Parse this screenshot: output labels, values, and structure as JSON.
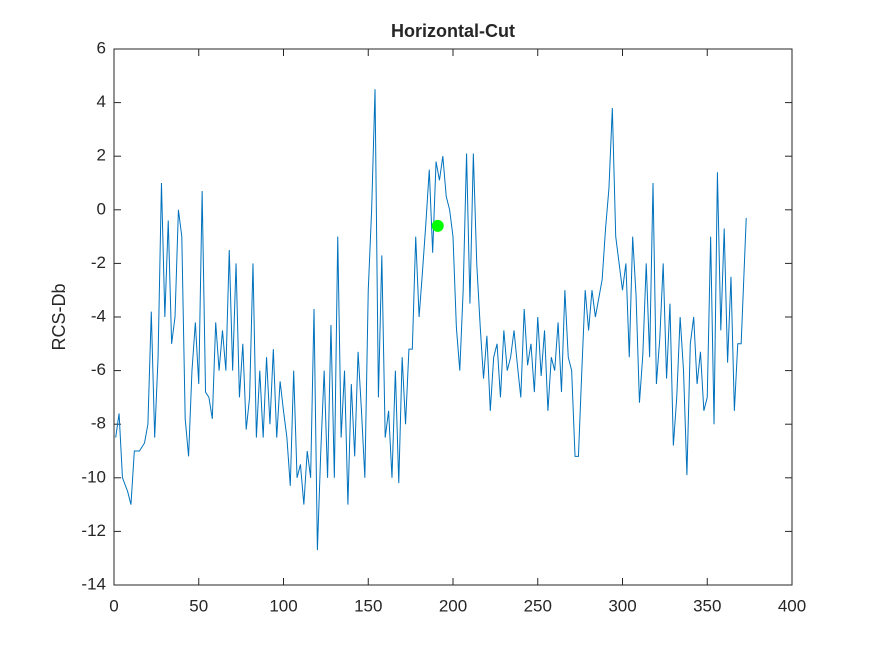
{
  "chart_data": {
    "type": "line",
    "title": "Horizontal-Cut",
    "y_label": "RCS-Db",
    "x": [
      1,
      3,
      5,
      8,
      10,
      12,
      15,
      18,
      20,
      22,
      24,
      26,
      28,
      30,
      32,
      34,
      36,
      38,
      40,
      42,
      44,
      46,
      48,
      50,
      52,
      54,
      56,
      58,
      60,
      62,
      64,
      66,
      68,
      70,
      72,
      74,
      76,
      78,
      80,
      82,
      84,
      86,
      88,
      90,
      92,
      94,
      96,
      98,
      100,
      102,
      104,
      106,
      108,
      110,
      112,
      114,
      116,
      118,
      120,
      122,
      124,
      126,
      128,
      130,
      132,
      134,
      136,
      138,
      140,
      142,
      144,
      146,
      148,
      150,
      152,
      154,
      156,
      158,
      160,
      162,
      164,
      166,
      168,
      170,
      172,
      174,
      176,
      178,
      180,
      182,
      184,
      186,
      188,
      190,
      192,
      194,
      196,
      198,
      200,
      202,
      204,
      206,
      208,
      210,
      212,
      214,
      216,
      218,
      220,
      222,
      224,
      226,
      228,
      230,
      232,
      234,
      236,
      238,
      240,
      242,
      244,
      246,
      248,
      250,
      252,
      254,
      256,
      258,
      260,
      262,
      264,
      266,
      268,
      270,
      272,
      274,
      276,
      278,
      280,
      282,
      284,
      286,
      288,
      290,
      292,
      294,
      296,
      298,
      300,
      302,
      304,
      306,
      308,
      310,
      312,
      314,
      316,
      318,
      320,
      322,
      324,
      326,
      328,
      330,
      332,
      334,
      336,
      338,
      340,
      342,
      344,
      346,
      348,
      350,
      352,
      354,
      356,
      358,
      360,
      362,
      364,
      366,
      368,
      370,
      373
    ],
    "values": [
      -8.5,
      -7.6,
      -10,
      -10.5,
      -11,
      -9,
      -9,
      -8.7,
      -8,
      -3.8,
      -8.5,
      -5.5,
      1,
      -4,
      -0.4,
      -5,
      -4,
      0,
      -1,
      -7.8,
      -9.2,
      -6,
      -4.2,
      -6.5,
      0.7,
      -6.8,
      -7,
      -7.8,
      -4.2,
      -6,
      -4.5,
      -6,
      -1.5,
      -6,
      -2,
      -7,
      -5,
      -8.2,
      -7,
      -2,
      -8.5,
      -6,
      -8.5,
      -5.5,
      -8,
      -5.2,
      -8.5,
      -6.4,
      -7.5,
      -8.5,
      -10.3,
      -6,
      -10,
      -9.5,
      -11,
      -9,
      -10,
      -3.7,
      -12.7,
      -9,
      -6,
      -10,
      -4.3,
      -10,
      -1,
      -8.5,
      -6,
      -11,
      -6.5,
      -9.2,
      -5.3,
      -7.5,
      -10,
      -3,
      0,
      4.5,
      -7,
      -1.7,
      -8.5,
      -7.5,
      -10,
      -6,
      -10.2,
      -5.5,
      -8,
      -5.2,
      -5.2,
      -1,
      -4,
      -2.3,
      -0.5,
      1.5,
      -1.6,
      1.8,
      1.1,
      2,
      0.5,
      0,
      -1,
      -4.4,
      -6,
      -3,
      2.1,
      -3.5,
      2.1,
      -2,
      -4.3,
      -6.3,
      -4.7,
      -7.5,
      -5.5,
      -5,
      -7,
      -4.5,
      -6,
      -5.5,
      -4.5,
      -5.8,
      -7,
      -3.7,
      -5.8,
      -5,
      -6.8,
      -4,
      -6.2,
      -4.5,
      -7.5,
      -5.5,
      -6,
      -4.2,
      -6.8,
      -3,
      -5.5,
      -6,
      -9.2,
      -9.2,
      -6,
      -3,
      -4.5,
      -3,
      -4,
      -3.3,
      -2.6,
      -0.7,
      0.8,
      3.8,
      -1,
      -2,
      -3,
      -2,
      -5.5,
      -1,
      -3.2,
      -7.2,
      -5.4,
      -2,
      -5.5,
      1,
      -6.5,
      -4.8,
      -2,
      -6.3,
      -3.5,
      -8.8,
      -7,
      -4,
      -6,
      -9.9,
      -5,
      -4,
      -6.5,
      -5.3,
      -7.5,
      -7,
      -1,
      -8,
      1.4,
      -4.5,
      -0.7,
      -5.7,
      -2.5,
      -7.5,
      -5,
      -5,
      -0.3
    ],
    "color": "#0072bd",
    "highlight": {
      "x": 191,
      "y": -0.6,
      "color": "#00ff00"
    },
    "xlim": [
      0,
      400
    ],
    "xticks": [
      0,
      50,
      100,
      150,
      200,
      250,
      300,
      350,
      400
    ],
    "ylim": [
      -14,
      6
    ],
    "yticks": [
      -14,
      -12,
      -10,
      -8,
      -6,
      -4,
      -2,
      0,
      2,
      4,
      6
    ]
  }
}
